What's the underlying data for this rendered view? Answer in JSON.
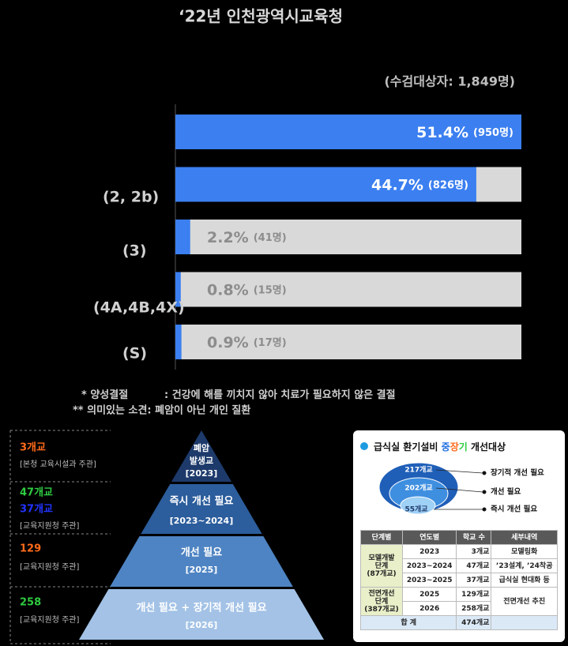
{
  "title": "‘22년 인천광역시교육청",
  "subtitle": "(수검대상자: 1,849명)",
  "chart_data": {
    "type": "bar",
    "orientation": "horizontal",
    "categories": [
      null,
      "(2, 2b)",
      "(3)",
      "(4A,4B,4X)",
      "(S)"
    ],
    "values": [
      51.4,
      44.7,
      2.2,
      0.8,
      0.9
    ],
    "value_labels": [
      "51.4%",
      "44.7%",
      "2.2%",
      "0.8%",
      "0.9%"
    ],
    "count_labels": [
      "(950명)",
      "(826명)",
      "(41명)",
      "(15명)",
      "(17명)"
    ],
    "color": "#3b7ff0",
    "track_color": "#d9d9d9",
    "xlim": [
      0,
      51.4
    ]
  },
  "notes": [
    [
      "* 양성결절",
      ": 건강에 해를 끼치지 않아 치료가 필요하지 않은 결절"
    ],
    [
      "** 의미있는 소견: 폐암이 아닌 개인 질환"
    ]
  ],
  "pyramid": {
    "levels": [
      {
        "label": [
          "폐암",
          "발생교"
        ],
        "period": "[2023]",
        "counts": [
          {
            "text": "3개교",
            "color": "#ff6a1a"
          }
        ],
        "owner": "[본청 교육시설과 주관]",
        "color": "#1d3a6b"
      },
      {
        "label": [
          "즉시 개선 필요"
        ],
        "period": "[2023~2024]",
        "counts": [
          {
            "text": "47개교",
            "color": "#2ecc40"
          },
          {
            "text": "37개교",
            "color": "#2233ff"
          }
        ],
        "owner": "[교육지원청 주관]",
        "color": "#2c5d9c"
      },
      {
        "label": [
          "개선 필요"
        ],
        "period": "[2025]",
        "counts": [
          {
            "text": "129",
            "color": "#ff6a1a"
          }
        ],
        "owner": "[교육지원청 주관]",
        "color": "#4e84c3"
      },
      {
        "label": [
          "개선 필요 + 장기적 개선 필요"
        ],
        "period": "[2026]",
        "counts": [
          {
            "text": "258",
            "color": "#2ecc40"
          }
        ],
        "owner": "[교육지원청 주관]",
        "color": "#a3c2e6"
      }
    ]
  },
  "panel": {
    "title": [
      {
        "text": "급식실 환기설비 ",
        "color": "#111111"
      },
      {
        "text": "중",
        "color": "#1f6fe0"
      },
      {
        "text": "장",
        "color": "#ff6a1a"
      },
      {
        "text": "기",
        "color": "#2ecc40"
      },
      {
        "text": " 개선대상",
        "color": "#111111"
      }
    ],
    "circles": [
      {
        "count": "217개교",
        "label": "장기적 개선 필요"
      },
      {
        "count": "202개교",
        "label": "개선 필요"
      },
      {
        "count": "55개교",
        "label": "즉시 개선 필요"
      }
    ],
    "table": {
      "header": [
        "단계별",
        "연도별",
        "학교 수",
        "세부내역"
      ],
      "stages": [
        [
          "모델개발",
          "단계",
          "(87개교)"
        ],
        [
          "전면개선",
          "단계",
          "(387개교)"
        ]
      ],
      "rows": [
        [
          "2023",
          "3개교",
          "모델링화"
        ],
        [
          "2023~2024",
          "47개교",
          "’23설계, ’24착공"
        ],
        [
          "2023~2025",
          "37개교",
          "급식실 현대화 등"
        ],
        [
          "2025",
          "129개교",
          "전면개선 추진"
        ],
        [
          "2026",
          "258개교"
        ]
      ],
      "total": [
        "합 계",
        "474개교"
      ]
    }
  }
}
